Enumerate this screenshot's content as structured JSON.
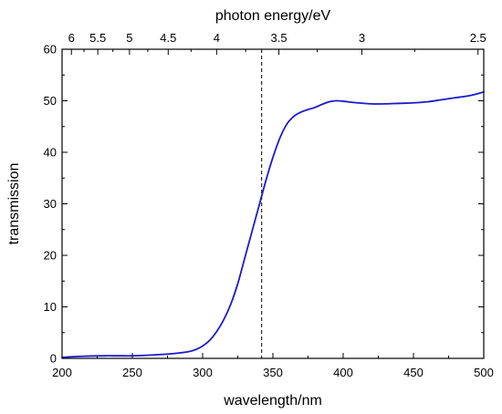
{
  "chart_data": {
    "type": "line",
    "xlabel": "wavelength/nm",
    "ylabel": "transmission",
    "x2label": "photon energy/eV",
    "xlim": [
      200,
      500
    ],
    "ylim": [
      0,
      60
    ],
    "x_ticks": [
      200,
      250,
      300,
      350,
      400,
      450,
      500
    ],
    "x_tick_labels": [
      "200",
      "250",
      "300",
      "350",
      "400",
      "450",
      "500"
    ],
    "y_ticks": [
      0,
      10,
      20,
      30,
      40,
      50,
      60
    ],
    "y_tick_labels": [
      "0",
      "10",
      "20",
      "30",
      "40",
      "50",
      "60"
    ],
    "top_ticks": [
      6,
      5.5,
      5,
      4.5,
      4,
      3.5,
      3,
      2.5
    ],
    "top_tick_labels": [
      "6",
      "5.5",
      "5",
      "4.5",
      "4",
      "3.5",
      "3",
      "2.5"
    ],
    "top_axis_scale": "reciprocal",
    "grid": false,
    "reference_line": {
      "x": 342,
      "style": "dashed"
    },
    "series": [
      {
        "color": "#1a1acc",
        "x": [
          200,
          210,
          220,
          230,
          240,
          250,
          260,
          270,
          280,
          290,
          295,
          300,
          305,
          310,
          315,
          320,
          325,
          330,
          335,
          340,
          345,
          350,
          355,
          360,
          365,
          370,
          375,
          380,
          385,
          390,
          395,
          400,
          410,
          420,
          430,
          440,
          450,
          460,
          470,
          480,
          490,
          500
        ],
        "y": [
          0.2,
          0.35,
          0.45,
          0.5,
          0.5,
          0.5,
          0.6,
          0.75,
          0.95,
          1.3,
          1.7,
          2.4,
          3.5,
          5.2,
          7.5,
          10.5,
          14.5,
          19.5,
          24.5,
          29.5,
          34.5,
          39.0,
          42.8,
          45.5,
          47.0,
          47.8,
          48.3,
          48.7,
          49.3,
          49.8,
          50.0,
          49.9,
          49.6,
          49.4,
          49.4,
          49.5,
          49.6,
          49.8,
          50.2,
          50.6,
          51.0,
          51.7
        ]
      }
    ]
  }
}
